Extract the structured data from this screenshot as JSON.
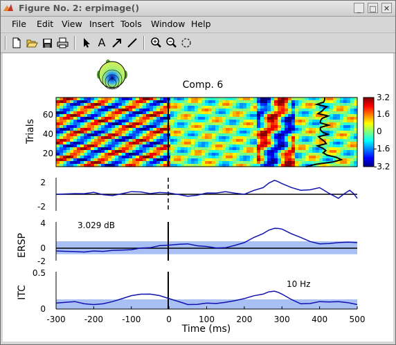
{
  "window": {
    "title": "Figure No. 2:  erpimage()",
    "buttons": [
      "_",
      "□",
      "✕"
    ]
  },
  "menu": {
    "items": [
      "File",
      "Edit",
      "View",
      "Insert",
      "Tools",
      "Window",
      "Help"
    ]
  },
  "toolbar": {
    "icons": [
      "new-file-icon",
      "open-folder-icon",
      "save-icon",
      "print-icon",
      "select-arrow-icon",
      "insert-text-icon",
      "insert-arrow-icon",
      "insert-line-icon",
      "zoom-in-icon",
      "zoom-out-icon",
      "rotate-icon"
    ],
    "text_tool": "A"
  },
  "figure": {
    "component_title": "Comp. 6",
    "trials_label": "Trials",
    "trial_ticks": [
      "20",
      "40",
      "60"
    ],
    "colorbar_ticks": [
      "3.2",
      "1.6",
      "0",
      "-1.6",
      "-3.2"
    ],
    "erp_ticks": [
      "2",
      "-2"
    ],
    "ersp_label": "ERSP",
    "ersp_ticks": [
      "4",
      "0",
      "-2"
    ],
    "ersp_value": "3.029 dB",
    "itc_label": "ITC",
    "itc_ticks": [
      "0.5",
      "0"
    ],
    "itc_freq": "10 Hz",
    "x_ticks": [
      "-300",
      "-200",
      "-100",
      "0",
      "100",
      "200",
      "300",
      "400",
      "500"
    ],
    "x_label": "Time (ms)"
  },
  "colors": {
    "trace": "#1010b0",
    "significance_band": "#a8c0f4"
  },
  "chart_data": [
    {
      "type": "heatmap",
      "title": "Comp. 6",
      "ylabel": "Trials",
      "xlim": [
        -300,
        500
      ],
      "ylim": [
        1,
        80
      ],
      "colorbar_range": [
        -3.2,
        3.2
      ]
    },
    {
      "type": "line",
      "x": [
        -300,
        -250,
        -200,
        -150,
        -100,
        -50,
        0,
        50,
        100,
        150,
        200,
        250,
        280,
        300,
        350,
        400,
        450,
        480,
        500
      ],
      "series": [
        {
          "values": [
            0.0,
            0.1,
            0.3,
            -0.2,
            0.4,
            0.1,
            0.2,
            -0.3,
            0.2,
            0.4,
            0.0,
            1.0,
            2.1,
            1.6,
            0.6,
            1.0,
            -0.6,
            0.6,
            -0.6
          ]
        }
      ],
      "ylim": [
        -2.5,
        2.5
      ]
    },
    {
      "type": "line",
      "ylabel": "ERSP",
      "annotation": "3.029 dB",
      "x": [
        -300,
        -250,
        -200,
        -150,
        -100,
        -50,
        0,
        50,
        100,
        150,
        200,
        250,
        280,
        300,
        350,
        400,
        450,
        500
      ],
      "series": [
        {
          "values": [
            -0.5,
            -0.6,
            -0.5,
            -0.4,
            -0.3,
            0.0,
            0.4,
            0.6,
            0.2,
            0.0,
            0.8,
            2.2,
            3.0,
            2.9,
            1.6,
            0.6,
            0.8,
            0.8
          ]
        }
      ],
      "significance": [
        -1.0,
        1.0
      ],
      "ylim": [
        -2,
        4
      ]
    },
    {
      "type": "line",
      "ylabel": "ITC",
      "annotation": "10 Hz",
      "x": [
        -300,
        -250,
        -200,
        -150,
        -100,
        -50,
        0,
        50,
        100,
        150,
        200,
        250,
        280,
        300,
        350,
        400,
        450,
        500
      ],
      "series": [
        {
          "values": [
            0.08,
            0.1,
            0.06,
            0.1,
            0.18,
            0.2,
            0.14,
            0.06,
            0.08,
            0.09,
            0.14,
            0.2,
            0.24,
            0.2,
            0.07,
            0.1,
            0.1,
            0.06
          ]
        }
      ],
      "significance": [
        0,
        0.13
      ],
      "ylim": [
        0,
        0.5
      ]
    }
  ]
}
